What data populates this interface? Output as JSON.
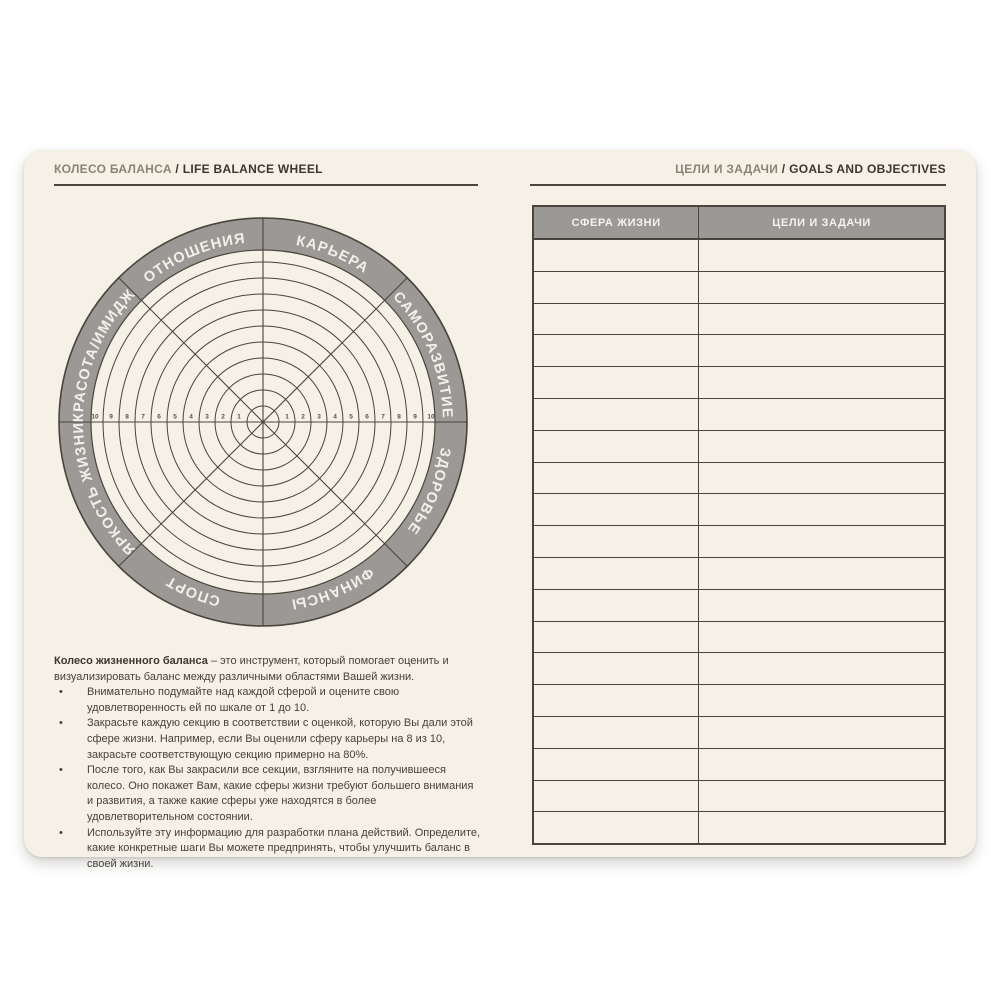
{
  "left_page": {
    "header": {
      "ru": "КОЛЕСО БАЛАНСА",
      "sep": " / ",
      "en": "LIFE BALANCE WHEEL"
    },
    "wheel": {
      "type": "radar-template",
      "sectors": 8,
      "rings": 10,
      "scale_min": 1,
      "scale_max": 10,
      "axis_numbers": [
        "1",
        "2",
        "3",
        "4",
        "5",
        "6",
        "7",
        "8",
        "9",
        "10"
      ],
      "segments": [
        {
          "label": "КАРЬЕРА",
          "mid_angle": 22.5
        },
        {
          "label": "САМОРАЗВИТИЕ",
          "mid_angle": 67.5
        },
        {
          "label": "ЗДОРОВЬЕ",
          "mid_angle": 112.5
        },
        {
          "label": "ФИНАНСЫ",
          "mid_angle": 157.5
        },
        {
          "label": "СПОРТ",
          "mid_angle": 202.5
        },
        {
          "label": "ЯРКОСТЬ ЖИЗНИ",
          "mid_angle": 247.5
        },
        {
          "label": "КРАСОТА/ИМИДЖ",
          "mid_angle": 292.5
        },
        {
          "label": "ОТНОШЕНИЯ",
          "mid_angle": 337.5
        }
      ]
    },
    "intro": {
      "bold": "Колесо жизненного баланса",
      "rest": " – это инструмент, который помогает оценить и визуализировать баланс между различными областями Вашей жизни."
    },
    "bullet_char": "•",
    "bullets": [
      {
        "text": "Внимательно подумайте над каждой сферой и оцените свою удовлетворенность ей по шкале от 1 до 10."
      },
      {
        "text": "Закрасьте каждую секцию в соответствии с оценкой, которую Вы дали этой сфере жизни. Например, если Вы оценили сферу карьеры на 8 из 10, закрасьте соответствующую секцию примерно на 80%."
      },
      {
        "text": "После того, как Вы закрасили все секции, взгляните на получившееся колесо. Оно покажет Вам, какие сферы жизни требуют большего внимания и развития, а также какие сферы уже находятся в более удовлетворительном состоянии."
      },
      {
        "text": "Используйте эту информацию для разработки плана действий. Определите, какие конкретные шаги Вы можете предпринять, чтобы улучшить баланс в своей жизни."
      }
    ]
  },
  "right_page": {
    "header": {
      "ru": "ЦЕЛИ И ЗАДАЧИ",
      "sep": " / ",
      "en": "GOALS AND OBJECTIVES"
    },
    "table": {
      "columns": [
        "СФЕРА ЖИЗНИ",
        "ЦЕЛИ И ЗАДАЧИ"
      ],
      "empty_rows": 19,
      "rows": []
    }
  },
  "colors": {
    "page_bg": "#f6f1e6",
    "photo_bg": "#ffffff",
    "line_dark": "#49443c",
    "ring_gray": "#9b9995",
    "header_light": "#8b8375",
    "header_dark": "#3b362e",
    "label_white": "#f3f0e9"
  }
}
